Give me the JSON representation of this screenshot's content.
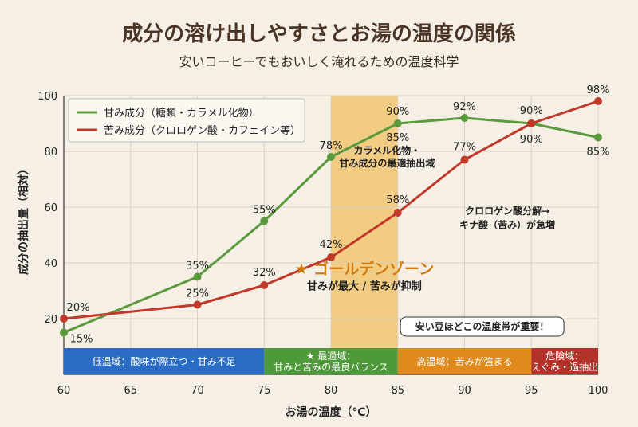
{
  "header": {
    "title": "成分の溶け出しやすさとお湯の温度の関係",
    "subtitle": "安いコーヒーでもおいしく淹れるための温度科学"
  },
  "chart_data": {
    "type": "line",
    "title": "成分の溶け出しやすさとお湯の温度の関係",
    "subtitle": "安いコーヒーでもおいしく淹れるための温度科学",
    "xlabel": "お湯の温度（℃）",
    "ylabel": "成分の抽出量（相対）",
    "xlim": [
      60,
      100
    ],
    "ylim": [
      0,
      100
    ],
    "xticks": [
      60,
      65,
      70,
      75,
      80,
      85,
      90,
      95,
      100
    ],
    "yticks": [
      20,
      40,
      60,
      80,
      100
    ],
    "grid": true,
    "legend_position": "top-left",
    "series": [
      {
        "name": "甘み成分（糖類・カラメル化物）",
        "color": "#5a9a3c",
        "x": [
          60,
          70,
          75,
          80,
          85,
          90,
          95,
          100
        ],
        "y": [
          15,
          35,
          55,
          78,
          90,
          92,
          90,
          85
        ],
        "labels": [
          "15%",
          "35%",
          "55%",
          "78%",
          "90%",
          "92%",
          "90%",
          "85%"
        ]
      },
      {
        "name": "苦み成分（クロロゲン酸・カフェイン等）",
        "color": "#c0392b",
        "x": [
          60,
          70,
          75,
          80,
          85,
          90,
          95,
          100
        ],
        "y": [
          20,
          25,
          32,
          42,
          58,
          77,
          90,
          98
        ],
        "labels": [
          "20%",
          "25%",
          "32%",
          "42%",
          "58%",
          "77%",
          "90%",
          "98%"
        ]
      }
    ],
    "highlight": {
      "x_range": [
        80,
        85
      ],
      "color": "#f0c060",
      "label": "★ ゴールデンゾーン",
      "sublabel": "甘みが最大 / 苦みが抑制"
    },
    "annotations": [
      {
        "id": "green_peak",
        "text_lines": [
          "85%",
          "カラメル化物・",
          "甘み成分の最適抽出域"
        ]
      },
      {
        "id": "chlorogen",
        "text_lines": [
          "クロロゲン酸分解→",
          "キナ酸（苦み）が急増"
        ]
      },
      {
        "id": "callout",
        "text": "安い豆ほどこの温度帯が重要！"
      }
    ],
    "zones": [
      {
        "x_range": [
          60,
          75
        ],
        "color": "#2b6cc4",
        "lines": [
          "低温域：酸味が際立つ・甘み不足"
        ]
      },
      {
        "x_range": [
          75,
          85
        ],
        "color": "#4e9a3a",
        "lines": [
          "★ 最適域：",
          "甘みと苦みの最良バランス"
        ]
      },
      {
        "x_range": [
          85,
          95
        ],
        "color": "#e08a1e",
        "lines": [
          "高温域：苦みが強まる"
        ]
      },
      {
        "x_range": [
          95,
          100
        ],
        "color": "#b3322a",
        "lines": [
          "危険域：",
          "えぐみ・過抽出"
        ]
      }
    ]
  }
}
